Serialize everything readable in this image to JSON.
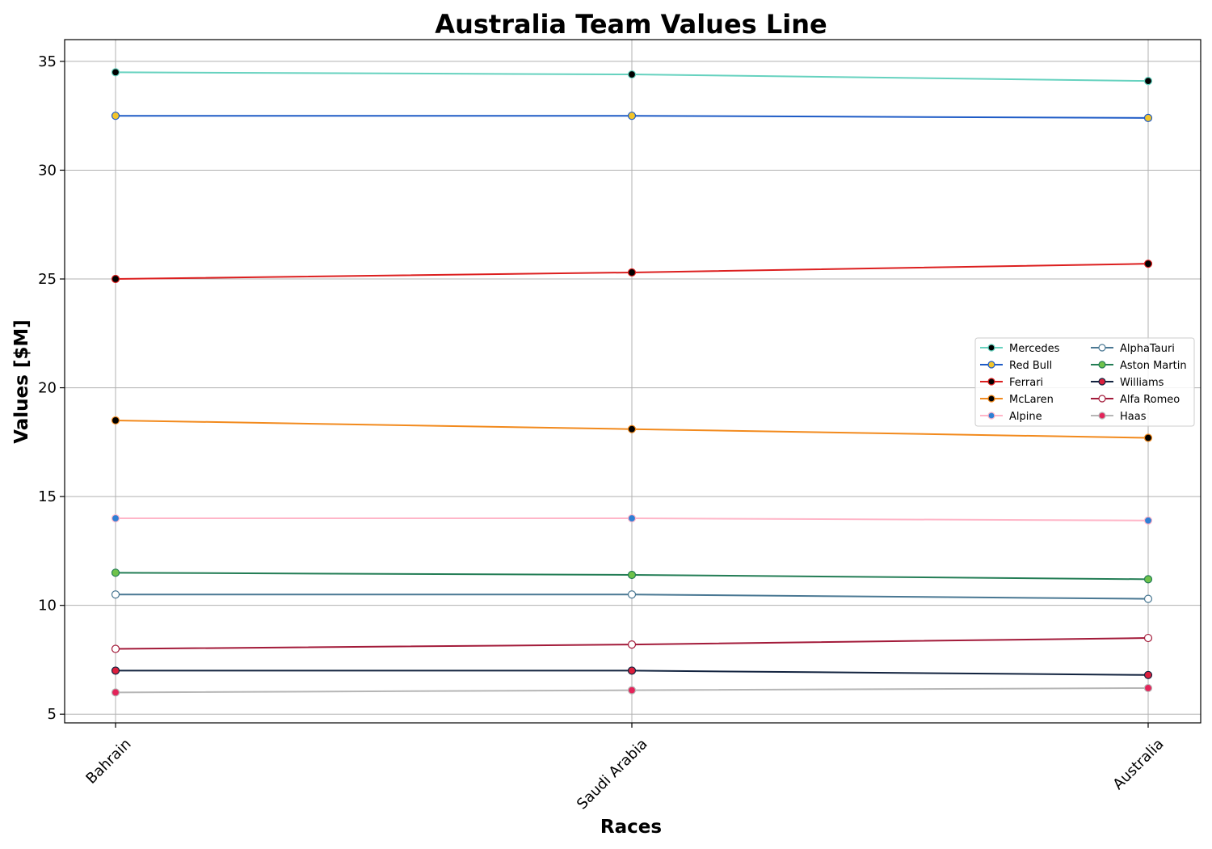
{
  "chart_data": {
    "type": "line",
    "title": "Australia Team Values Line",
    "xlabel": "Races",
    "ylabel": "Values [$M]",
    "categories": [
      "Bahrain",
      "Saudi Arabia",
      "Australia"
    ],
    "ylim": [
      4.6,
      36.0
    ],
    "yticks": [
      5,
      10,
      15,
      20,
      25,
      30,
      35
    ],
    "grid": true,
    "legend_position": "center-right",
    "legend_columns": 2,
    "series": [
      {
        "name": "Mercedes",
        "values": [
          34.5,
          34.4,
          34.1
        ],
        "line_color": "#66d2bf",
        "marker_fill": "#000000",
        "marker_edge": "#66d2bf"
      },
      {
        "name": "Red Bull",
        "values": [
          32.5,
          32.5,
          32.4
        ],
        "line_color": "#1e5bc6",
        "marker_fill": "#f3c52a",
        "marker_edge": "#1e5bc6"
      },
      {
        "name": "Ferrari",
        "values": [
          25.0,
          25.3,
          25.7
        ],
        "line_color": "#dc1f1f",
        "marker_fill": "#000000",
        "marker_edge": "#dc1f1f"
      },
      {
        "name": "McLaren",
        "values": [
          18.5,
          18.1,
          17.7
        ],
        "line_color": "#f28a1d",
        "marker_fill": "#000000",
        "marker_edge": "#f28a1d"
      },
      {
        "name": "Alpine",
        "values": [
          14.0,
          14.0,
          13.9
        ],
        "line_color": "#ffb6c8",
        "marker_fill": "#2f7fd4",
        "marker_edge": "#ffb6c8"
      },
      {
        "name": "AlphaTauri",
        "values": [
          10.5,
          10.5,
          10.3
        ],
        "line_color": "#4a7893",
        "marker_fill": "#ffffff",
        "marker_edge": "#4a7893"
      },
      {
        "name": "Aston Martin",
        "values": [
          11.5,
          11.4,
          11.2
        ],
        "line_color": "#237d55",
        "marker_fill": "#6fc24a",
        "marker_edge": "#237d55"
      },
      {
        "name": "Williams",
        "values": [
          7.0,
          7.0,
          6.8
        ],
        "line_color": "#12233f",
        "marker_fill": "#dc1f3d",
        "marker_edge": "#12233f"
      },
      {
        "name": "Alfa Romeo",
        "values": [
          8.0,
          8.2,
          8.5
        ],
        "line_color": "#a31b3a",
        "marker_fill": "#ffffff",
        "marker_edge": "#a31b3a"
      },
      {
        "name": "Haas",
        "values": [
          6.0,
          6.1,
          6.2
        ],
        "line_color": "#b6b6b6",
        "marker_fill": "#e3245a",
        "marker_edge": "#b6b6b6"
      }
    ]
  }
}
